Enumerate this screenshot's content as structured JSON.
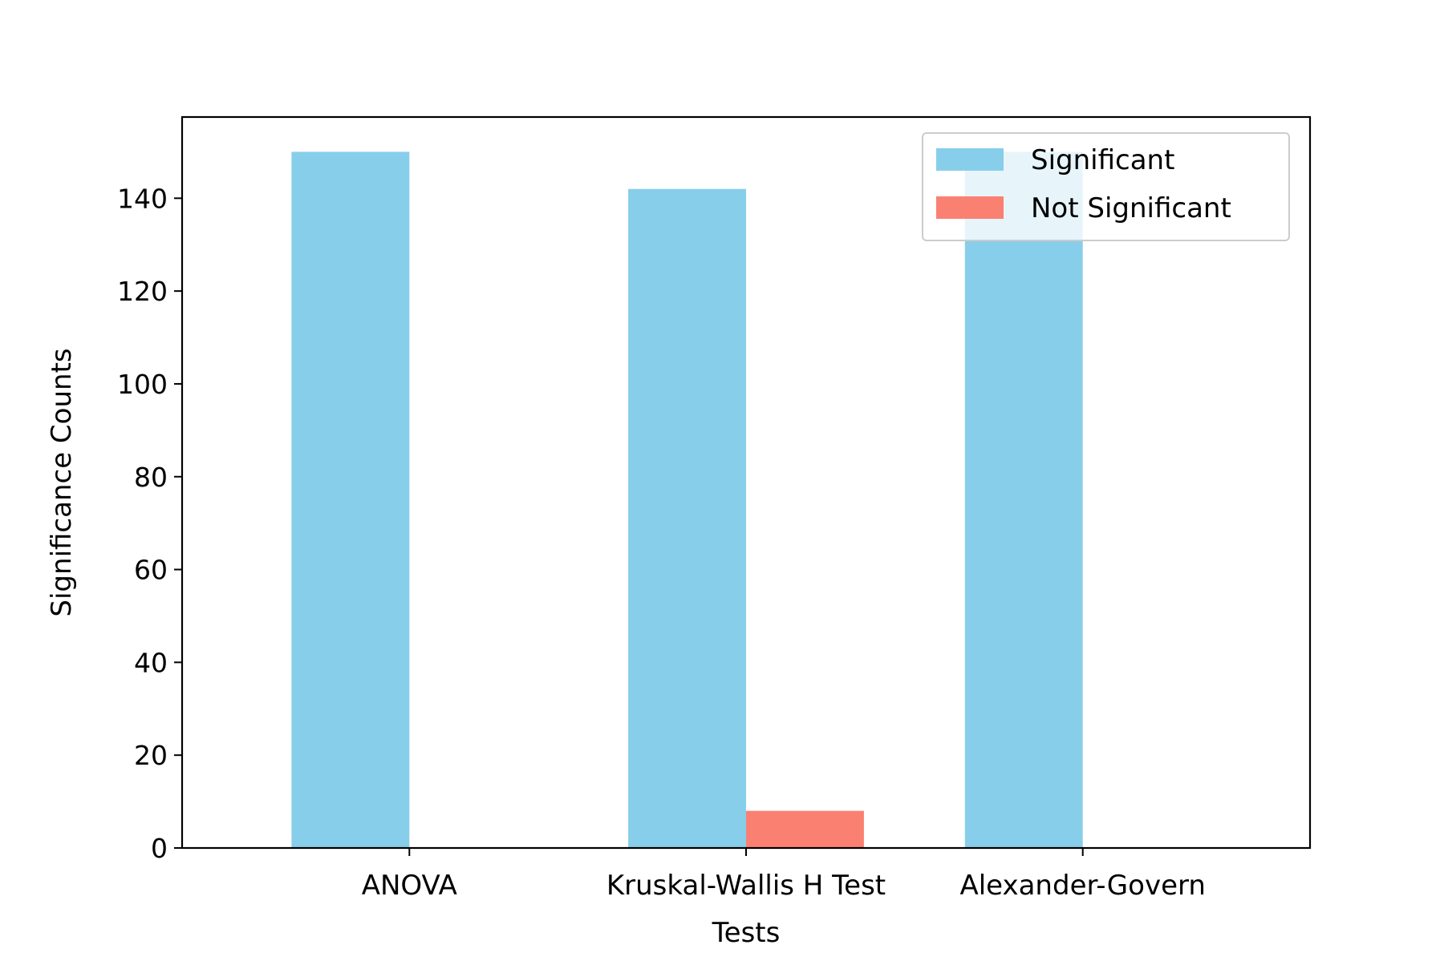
{
  "chart_data": {
    "type": "bar",
    "title": "",
    "xlabel": "Tests",
    "ylabel": "Significance Counts",
    "categories": [
      "ANOVA",
      "Kruskal-Wallis H Test",
      "Alexander-Govern"
    ],
    "series": [
      {
        "name": "Significant",
        "values": [
          150,
          142,
          150
        ],
        "color": "#87CEEB"
      },
      {
        "name": "Not Significant",
        "values": [
          0,
          8,
          0
        ],
        "color": "#FA8072"
      }
    ],
    "ylim": [
      0,
      157.5
    ],
    "yticks": [
      0,
      20,
      40,
      60,
      80,
      100,
      120,
      140
    ],
    "grid": false,
    "legend": "top-right"
  }
}
